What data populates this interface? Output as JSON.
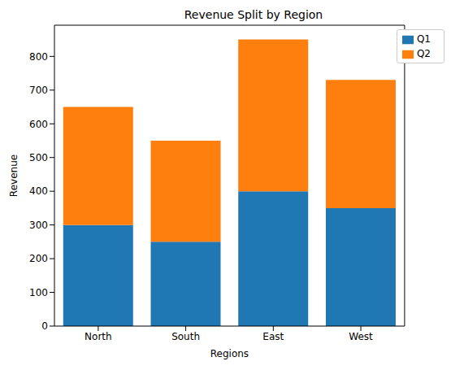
{
  "chart_data": {
    "type": "bar",
    "title": "Revenue Split by Region",
    "x_label": "Regions",
    "y_label": "Revenue",
    "categories": [
      "North",
      "South",
      "East",
      "West"
    ],
    "series": [
      {
        "name": "Q1",
        "color": "#1f77b4",
        "values": [
          300,
          250,
          400,
          350
        ]
      },
      {
        "name": "Q2",
        "color": "#ff7f0e",
        "values": [
          350,
          300,
          450,
          380
        ]
      }
    ],
    "stacked": true,
    "ylim": [
      0,
      892.5
    ],
    "yticks": [
      0,
      100,
      200,
      300,
      400,
      500,
      600,
      700,
      800
    ],
    "legend": "upper right",
    "grid": false
  }
}
